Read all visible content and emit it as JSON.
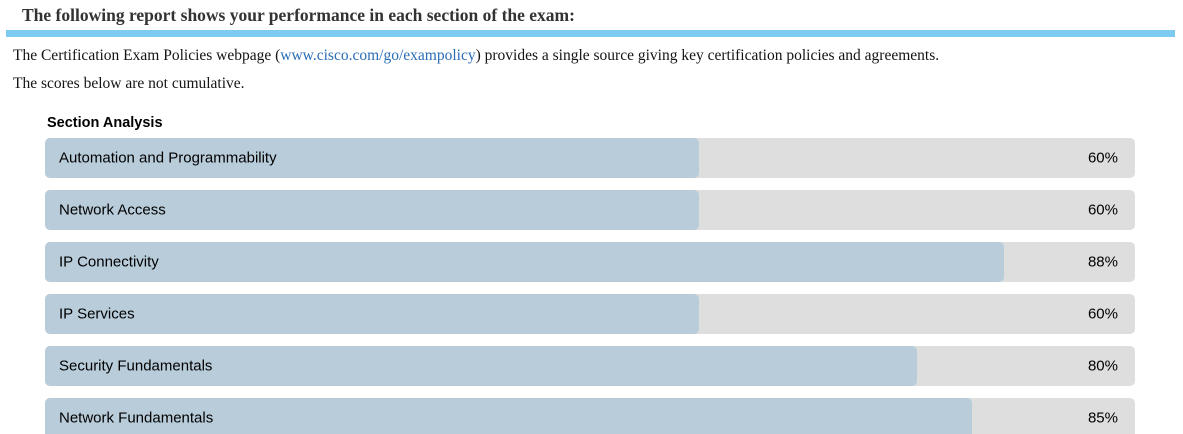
{
  "header": {
    "title": "The following report shows your performance in each section of the exam:"
  },
  "intro": {
    "policy_text_before": "The Certification Exam Policies webpage (",
    "policy_link": "www.cisco.com/go/exampolicy",
    "policy_text_after": ") provides a single source giving key certification policies and agreements.",
    "cumulative_note": "The scores below are not cumulative."
  },
  "chart_data": {
    "type": "bar",
    "orientation": "horizontal",
    "title": "Section Analysis",
    "categories": [
      "Automation and Programmability",
      "Network Access",
      "IP Connectivity",
      "IP Services",
      "Security Fundamentals",
      "Network Fundamentals"
    ],
    "values": [
      60,
      60,
      88,
      60,
      80,
      85
    ],
    "value_labels": [
      "60%",
      "60%",
      "88%",
      "60%",
      "80%",
      "85%"
    ],
    "value_suffix": "%",
    "xlim": [
      0,
      100
    ],
    "grid": false,
    "legend": "none",
    "colors": {
      "bar_fill": "#b8ccda",
      "bar_track": "#dedede"
    }
  },
  "colors": {
    "divider_blue": "#7ecbf1",
    "link_blue": "#2a6db5",
    "heading_text": "#333333",
    "body_text": "#141414"
  }
}
